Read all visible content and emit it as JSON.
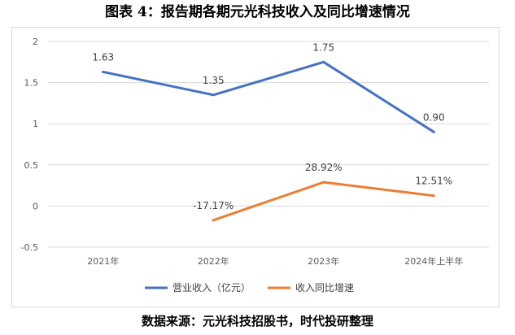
{
  "figure": {
    "title": "图表 4：报告期各期元光科技收入及同比增速情况",
    "source": "数据来源：元光科技招股书，时代投研整理"
  },
  "chart_data": {
    "type": "line",
    "categories": [
      "2021年",
      "2022年",
      "2023年",
      "2024年上半年"
    ],
    "ylim": [
      -0.5,
      2
    ],
    "yticks": [
      -0.5,
      0,
      0.5,
      1,
      1.5,
      2
    ],
    "ytick_labels": [
      "-0.5",
      "0",
      "0.5",
      "1",
      "1.5",
      "2"
    ],
    "grid": true,
    "legend_position": "bottom",
    "series": [
      {
        "name": "营业收入（亿元）",
        "color": "#4472c4",
        "values": [
          1.63,
          1.35,
          1.75,
          0.9
        ],
        "labels": [
          "1.63",
          "1.35",
          "1.75",
          "0.90"
        ]
      },
      {
        "name": "收入同比增速",
        "color": "#ed7d31",
        "values": [
          null,
          -0.1717,
          0.2892,
          0.1251
        ],
        "labels": [
          "",
          "-17.17%",
          "28.92%",
          "12.51%"
        ]
      }
    ]
  }
}
